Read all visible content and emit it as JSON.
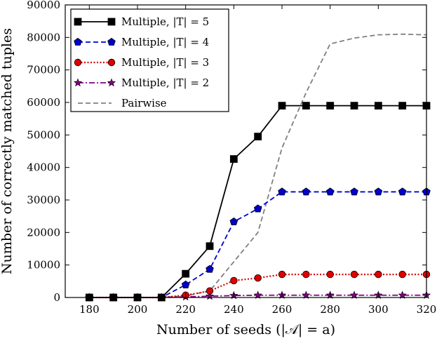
{
  "chart_data": {
    "type": "line",
    "title": "",
    "xlabel": "Number of seeds (|𝒜| = a)",
    "ylabel": "Number of correctly matched tuples",
    "xlim": [
      170,
      320
    ],
    "ylim": [
      0,
      90000
    ],
    "xticks": [
      180,
      200,
      220,
      240,
      260,
      280,
      300,
      320
    ],
    "yticks": [
      0,
      10000,
      20000,
      30000,
      40000,
      50000,
      60000,
      70000,
      80000,
      90000
    ],
    "legend_position": "top-left",
    "series": [
      {
        "name": "Multiple, |T| = 5",
        "color": "#000000",
        "line_style": "solid",
        "marker": "square",
        "x": [
          180,
          190,
          200,
          210,
          220,
          230,
          240,
          250,
          260,
          270,
          280,
          290,
          300,
          310,
          320
        ],
        "y": [
          0,
          0,
          0,
          0,
          7300,
          15800,
          42600,
          49500,
          59000,
          59000,
          59000,
          59000,
          59000,
          59000,
          59000
        ]
      },
      {
        "name": "Multiple, |T| = 4",
        "color": "#0000cc",
        "line_style": "dashed",
        "marker": "pentagon",
        "x": [
          180,
          190,
          200,
          210,
          220,
          230,
          240,
          250,
          260,
          270,
          280,
          290,
          300,
          310,
          320
        ],
        "y": [
          0,
          0,
          0,
          0,
          3900,
          8700,
          23300,
          27300,
          32500,
          32500,
          32500,
          32500,
          32500,
          32500,
          32500
        ]
      },
      {
        "name": "Multiple, |T| = 3",
        "color": "#dd0000",
        "line_style": "dotted",
        "marker": "circle",
        "x": [
          180,
          190,
          200,
          210,
          220,
          230,
          240,
          250,
          260,
          270,
          280,
          290,
          300,
          310,
          320
        ],
        "y": [
          0,
          0,
          0,
          0,
          700,
          2000,
          5200,
          6000,
          7100,
          7100,
          7100,
          7100,
          7100,
          7100,
          7100
        ]
      },
      {
        "name": "Multiple, |T| = 2",
        "color": "#800080",
        "line_style": "dashdot",
        "marker": "star",
        "x": [
          180,
          190,
          200,
          210,
          220,
          230,
          240,
          250,
          260,
          270,
          280,
          290,
          300,
          310,
          320
        ],
        "y": [
          0,
          0,
          0,
          0,
          200,
          400,
          600,
          700,
          700,
          700,
          700,
          700,
          700,
          700,
          700
        ]
      },
      {
        "name": "Pairwise",
        "color": "#808080",
        "line_style": "dashed",
        "marker": "none",
        "x": [
          180,
          200,
          210,
          220,
          230,
          240,
          250,
          260,
          270,
          280,
          290,
          300,
          310,
          320
        ],
        "y": [
          0,
          0,
          0,
          500,
          2000,
          11000,
          20000,
          46000,
          63000,
          78000,
          79800,
          80800,
          81000,
          80800
        ]
      }
    ]
  }
}
